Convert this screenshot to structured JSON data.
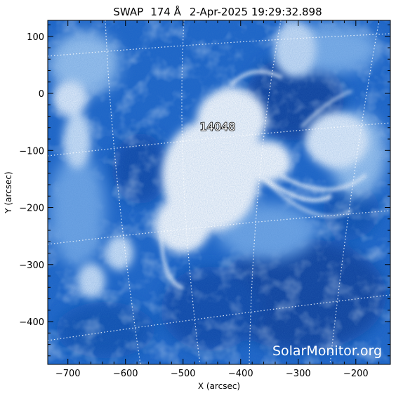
{
  "title": {
    "instrument": "SWAP",
    "wavelength": "174 Å",
    "datetime": "2-Apr-2025 19:29:32.898"
  },
  "axes": {
    "xlabel": "X (arcsec)",
    "ylabel": "Y (arcsec)",
    "xlim": [
      -735,
      -140
    ],
    "ylim": [
      -475,
      128
    ],
    "xticks": [
      {
        "value": -700,
        "label": "−700"
      },
      {
        "value": -600,
        "label": "−600"
      },
      {
        "value": -500,
        "label": "−500"
      },
      {
        "value": -400,
        "label": "−400"
      },
      {
        "value": -300,
        "label": "−300"
      },
      {
        "value": -200,
        "label": "−200"
      }
    ],
    "yticks": [
      {
        "value": 100,
        "label": "100"
      },
      {
        "value": 0,
        "label": "0"
      },
      {
        "value": -100,
        "label": "−100"
      },
      {
        "value": -200,
        "label": "−200"
      },
      {
        "value": -300,
        "label": "−300"
      },
      {
        "value": -400,
        "label": "−400"
      }
    ]
  },
  "active_region": {
    "number": "14048",
    "x": -440,
    "y": -65
  },
  "watermark": "SolarMonitor.org",
  "colors": {
    "background_blue": "#1a63c8",
    "deep_blue": "#0d3f9c",
    "mid_blue": "#3f86dd",
    "light_blue": "#9cc4ef",
    "bright": "#ffffff"
  }
}
